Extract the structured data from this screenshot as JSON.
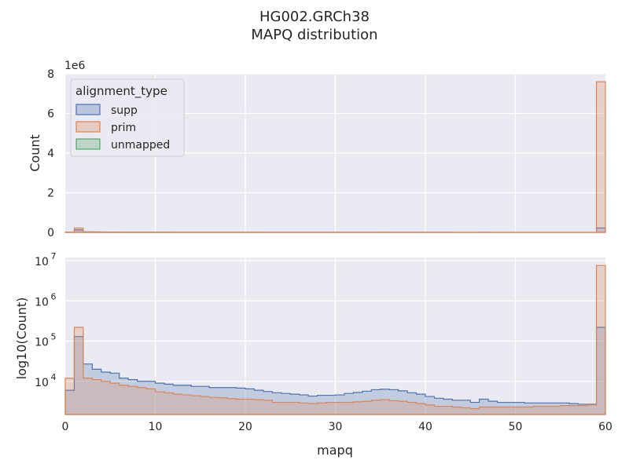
{
  "title_line1": "HG002.GRCh38",
  "title_line2": "MAPQ distribution",
  "colors": {
    "supp": "#4c72b0",
    "prim": "#dd8452",
    "unmapped": "#55a868",
    "panel": "#eaeaf2"
  },
  "chart_data": [
    {
      "type": "area",
      "panel": "top",
      "xlabel": "",
      "ylabel": "Count",
      "offset_label": "1e6",
      "xlim": [
        0,
        60
      ],
      "ylim": [
        0,
        8000000
      ],
      "yticks": [
        0,
        2000000,
        4000000,
        6000000,
        8000000
      ],
      "ytick_labels": [
        "0",
        "2",
        "4",
        "6",
        "8"
      ],
      "legend": {
        "title": "alignment_type",
        "entries": [
          "supp",
          "prim",
          "unmapped"
        ],
        "placement": "top-left"
      }
    },
    {
      "type": "area",
      "panel": "bottom",
      "xlabel": "mapq",
      "ylabel": "log10(Count)",
      "yscale": "log",
      "xlim": [
        0,
        60
      ],
      "ylim": [
        1500,
        12000000
      ],
      "xticks": [
        0,
        10,
        20,
        30,
        40,
        50,
        60
      ],
      "xtick_labels": [
        "0",
        "10",
        "20",
        "30",
        "40",
        "50",
        "60"
      ],
      "yticks": [
        10000,
        100000,
        1000000,
        10000000
      ],
      "ytick_base": "10",
      "ytick_exponents": [
        "4",
        "5",
        "6",
        "7"
      ]
    }
  ],
  "bin_edges": [
    0,
    1,
    2,
    3,
    4,
    5,
    6,
    7,
    8,
    9,
    10,
    11,
    12,
    13,
    14,
    15,
    16,
    17,
    18,
    19,
    20,
    21,
    22,
    23,
    24,
    25,
    26,
    27,
    28,
    29,
    30,
    31,
    32,
    33,
    34,
    35,
    36,
    37,
    38,
    39,
    40,
    41,
    42,
    43,
    44,
    45,
    46,
    47,
    48,
    49,
    50,
    51,
    52,
    53,
    54,
    55,
    56,
    57,
    58,
    59,
    60
  ],
  "series": [
    {
      "name": "supp",
      "values": [
        6000,
        130000,
        27000,
        20000,
        17000,
        16000,
        12000,
        11000,
        10000,
        10000,
        9000,
        8500,
        8000,
        8000,
        7500,
        7500,
        7000,
        7000,
        7000,
        6800,
        6500,
        6000,
        5600,
        5200,
        5000,
        4800,
        4600,
        4300,
        4500,
        4500,
        4600,
        5000,
        5300,
        5700,
        6200,
        6400,
        6200,
        5800,
        5200,
        4800,
        4200,
        3800,
        3600,
        3400,
        3400,
        3000,
        3600,
        3200,
        3000,
        3000,
        3000,
        2900,
        2900,
        2900,
        2900,
        2900,
        2800,
        2700,
        2700,
        220000
      ]
    },
    {
      "name": "prim",
      "values": [
        12000,
        220000,
        12000,
        11000,
        10000,
        9000,
        8000,
        7500,
        7000,
        6500,
        5500,
        5200,
        4800,
        4600,
        4400,
        4200,
        4000,
        3900,
        3700,
        3600,
        3600,
        3500,
        3400,
        3000,
        3000,
        3000,
        2900,
        2800,
        2900,
        3000,
        3000,
        3000,
        3100,
        3200,
        3400,
        3500,
        3300,
        3200,
        3000,
        2800,
        2600,
        2400,
        2400,
        2300,
        2200,
        2100,
        2300,
        2300,
        2300,
        2300,
        2300,
        2300,
        2400,
        2400,
        2400,
        2500,
        2500,
        2500,
        2600,
        7600000
      ]
    }
  ]
}
